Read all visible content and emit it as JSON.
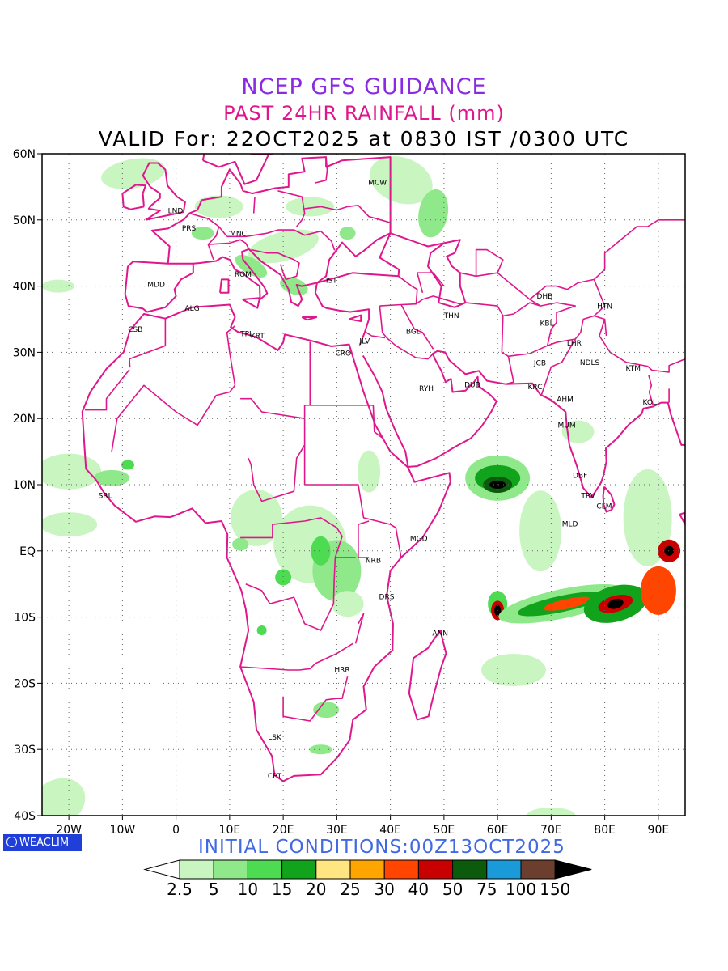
{
  "title": {
    "line1": "NCEP GFS GUIDANCE",
    "line2": "PAST 24HR RAINFALL (mm)",
    "line3": "VALID For: 22OCT2025 at 0830 IST /0300 UTC"
  },
  "initial_conditions": "INITIAL CONDITIONS:00Z13OCT2025",
  "logo_text": "WEACLIM",
  "map": {
    "lon_range": [
      -25,
      95
    ],
    "lat_range": [
      -40,
      60
    ],
    "x_ticks": [
      {
        "lon": -20,
        "label": "20W"
      },
      {
        "lon": -10,
        "label": "10W"
      },
      {
        "lon": 0,
        "label": "0"
      },
      {
        "lon": 10,
        "label": "10E"
      },
      {
        "lon": 20,
        "label": "20E"
      },
      {
        "lon": 30,
        "label": "30E"
      },
      {
        "lon": 40,
        "label": "40E"
      },
      {
        "lon": 50,
        "label": "50E"
      },
      {
        "lon": 60,
        "label": "60E"
      },
      {
        "lon": 70,
        "label": "70E"
      },
      {
        "lon": 80,
        "label": "80E"
      },
      {
        "lon": 90,
        "label": "90E"
      }
    ],
    "y_ticks": [
      {
        "lat": 60,
        "label": "60N"
      },
      {
        "lat": 50,
        "label": "50N"
      },
      {
        "lat": 40,
        "label": "40N"
      },
      {
        "lat": 30,
        "label": "30N"
      },
      {
        "lat": 20,
        "label": "20N"
      },
      {
        "lat": 10,
        "label": "10N"
      },
      {
        "lat": 0,
        "label": "EQ"
      },
      {
        "lat": -10,
        "label": "10S"
      },
      {
        "lat": -20,
        "label": "20S"
      },
      {
        "lat": -30,
        "label": "30S"
      },
      {
        "lat": -40,
        "label": "40S"
      }
    ],
    "grid": "dotted",
    "border_color": "#e0168c",
    "cities": [
      {
        "code": "MCW",
        "lon": 37.6,
        "lat": 55.8
      },
      {
        "code": "LND",
        "lon": -0.1,
        "lat": 51.5
      },
      {
        "code": "PRS",
        "lon": 2.4,
        "lat": 48.9
      },
      {
        "code": "MNC",
        "lon": 11.6,
        "lat": 48.1
      },
      {
        "code": "ROM",
        "lon": 12.5,
        "lat": 41.9
      },
      {
        "code": "IST",
        "lon": 29.0,
        "lat": 41.0
      },
      {
        "code": "MDD",
        "lon": -3.7,
        "lat": 40.4
      },
      {
        "code": "ALG",
        "lon": 3.0,
        "lat": 36.8
      },
      {
        "code": "CSB",
        "lon": -7.6,
        "lat": 33.6
      },
      {
        "code": "TPL",
        "lon": 13.2,
        "lat": 32.9
      },
      {
        "code": "KRT",
        "lon": 15.2,
        "lat": 32.6
      },
      {
        "code": "JLV",
        "lon": 35.2,
        "lat": 31.8
      },
      {
        "code": "CRO",
        "lon": 31.2,
        "lat": 30.0
      },
      {
        "code": "BGD",
        "lon": 44.4,
        "lat": 33.3
      },
      {
        "code": "THN",
        "lon": 51.4,
        "lat": 35.7
      },
      {
        "code": "RYH",
        "lon": 46.7,
        "lat": 24.7
      },
      {
        "code": "DUB",
        "lon": 55.3,
        "lat": 25.2
      },
      {
        "code": "DHB",
        "lon": 68.8,
        "lat": 38.6
      },
      {
        "code": "HTN",
        "lon": 80.0,
        "lat": 37.1
      },
      {
        "code": "KBL",
        "lon": 69.2,
        "lat": 34.5
      },
      {
        "code": "LHR",
        "lon": 74.3,
        "lat": 31.5
      },
      {
        "code": "JCB",
        "lon": 67.9,
        "lat": 28.5
      },
      {
        "code": "NDLS",
        "lon": 77.2,
        "lat": 28.6
      },
      {
        "code": "KTM",
        "lon": 85.3,
        "lat": 27.7
      },
      {
        "code": "KRC",
        "lon": 67.0,
        "lat": 24.9
      },
      {
        "code": "AHM",
        "lon": 72.6,
        "lat": 23.0
      },
      {
        "code": "KOL",
        "lon": 88.4,
        "lat": 22.6
      },
      {
        "code": "MUM",
        "lon": 72.9,
        "lat": 19.1
      },
      {
        "code": "DBF",
        "lon": 75.4,
        "lat": 11.5
      },
      {
        "code": "TRV",
        "lon": 76.9,
        "lat": 8.5
      },
      {
        "code": "CLM",
        "lon": 79.9,
        "lat": 6.9
      },
      {
        "code": "MLD",
        "lon": 73.5,
        "lat": 4.2
      },
      {
        "code": "SRL",
        "lon": -13.2,
        "lat": 8.5
      },
      {
        "code": "MGD",
        "lon": 45.3,
        "lat": 2.0
      },
      {
        "code": "NRB",
        "lon": 36.8,
        "lat": -1.3
      },
      {
        "code": "DRS",
        "lon": 39.3,
        "lat": -6.8
      },
      {
        "code": "ANN",
        "lon": 49.3,
        "lat": -12.3
      },
      {
        "code": "HRR",
        "lon": 31.0,
        "lat": -17.8
      },
      {
        "code": "LSK",
        "lon": 18.4,
        "lat": -28.0
      },
      {
        "code": "CPT",
        "lon": 18.4,
        "lat": -33.9
      }
    ]
  },
  "colorbar": {
    "labels": [
      "2.5",
      "5",
      "10",
      "15",
      "20",
      "25",
      "30",
      "40",
      "50",
      "75",
      "100",
      "150"
    ],
    "colors": [
      "#ffffff",
      "#c8f5c0",
      "#8fe88a",
      "#4ddb52",
      "#12a31c",
      "#ffe680",
      "#ffa500",
      "#ff4500",
      "#c80000",
      "#0c5a0c",
      "#1a9ad8",
      "#6b3e2e",
      "#000000"
    ]
  }
}
